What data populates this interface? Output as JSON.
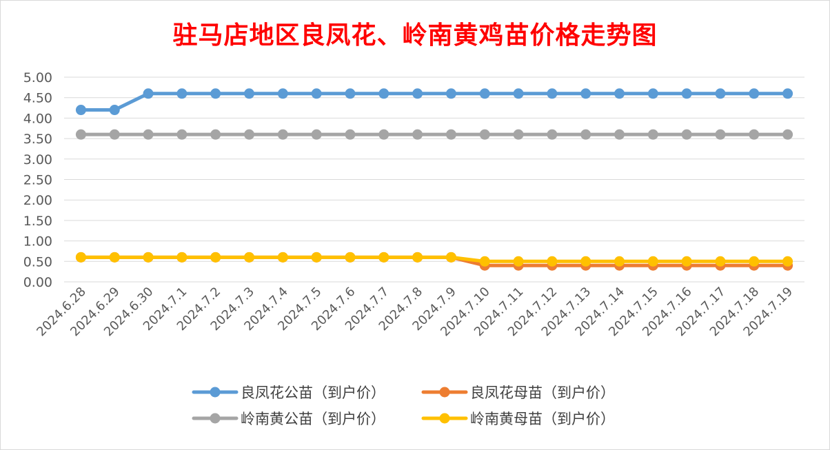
{
  "colors": {
    "lf_gongmiao": "#5b9bd5",
    "lf_mumiao": "#ed7d31",
    "ln_gongmiao": "#a5a5a5",
    "ln_mumiao": "#ffc000",
    "title": "#ff0000",
    "grid": "#d9d9d9"
  },
  "chart_data": {
    "type": "line",
    "title": "驻马店地区良凤花、岭南黄鸡苗价格走势图",
    "xlabel": "",
    "ylabel": "",
    "ylim": [
      0,
      5
    ],
    "yticks": [
      "0.00",
      "0.50",
      "1.00",
      "1.50",
      "2.00",
      "2.50",
      "3.00",
      "3.50",
      "4.00",
      "4.50",
      "5.00"
    ],
    "grid": true,
    "legend_position": "bottom",
    "categories": [
      "2024.6.28",
      "2024.6.29",
      "2024.6.30",
      "2024.7.1",
      "2024.7.2",
      "2024.7.3",
      "2024.7.4",
      "2024.7.5",
      "2024.7.6",
      "2024.7.7",
      "2024.7.8",
      "2024.7.9",
      "2024.7.10",
      "2024.7.11",
      "2024.7.12",
      "2024.7.13",
      "2024.7.14",
      "2024.7.15",
      "2024.7.16",
      "2024.7.17",
      "2024.7.18",
      "2024.7.19"
    ],
    "series": [
      {
        "name": "良凤花公苗（到户价）",
        "color_key": "lf_gongmiao",
        "values": [
          4.2,
          4.2,
          4.6,
          4.6,
          4.6,
          4.6,
          4.6,
          4.6,
          4.6,
          4.6,
          4.6,
          4.6,
          4.6,
          4.6,
          4.6,
          4.6,
          4.6,
          4.6,
          4.6,
          4.6,
          4.6,
          4.6
        ]
      },
      {
        "name": "良凤花母苗（到户价）",
        "color_key": "lf_mumiao",
        "values": [
          0.6,
          0.6,
          0.6,
          0.6,
          0.6,
          0.6,
          0.6,
          0.6,
          0.6,
          0.6,
          0.6,
          0.6,
          0.4,
          0.4,
          0.4,
          0.4,
          0.4,
          0.4,
          0.4,
          0.4,
          0.4,
          0.4
        ]
      },
      {
        "name": "岭南黄公苗（到户价）",
        "color_key": "ln_gongmiao",
        "values": [
          3.6,
          3.6,
          3.6,
          3.6,
          3.6,
          3.6,
          3.6,
          3.6,
          3.6,
          3.6,
          3.6,
          3.6,
          3.6,
          3.6,
          3.6,
          3.6,
          3.6,
          3.6,
          3.6,
          3.6,
          3.6,
          3.6
        ]
      },
      {
        "name": "岭南黄母苗（到户价）",
        "color_key": "ln_mumiao",
        "values": [
          0.6,
          0.6,
          0.6,
          0.6,
          0.6,
          0.6,
          0.6,
          0.6,
          0.6,
          0.6,
          0.6,
          0.6,
          0.5,
          0.5,
          0.5,
          0.5,
          0.5,
          0.5,
          0.5,
          0.5,
          0.5,
          0.5
        ]
      }
    ]
  }
}
